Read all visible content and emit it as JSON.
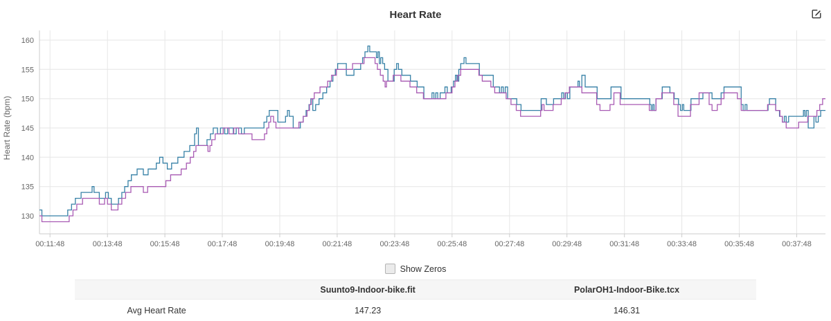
{
  "header": {
    "title": "Heart Rate",
    "edit_icon": "edit-icon"
  },
  "chart_data": {
    "type": "line",
    "subtype": "step-after",
    "title": "Heart Rate",
    "xlabel": "",
    "ylabel": "Heart Rate (bpm)",
    "grid": true,
    "legend_position": "none",
    "ylim": [
      127,
      162
    ],
    "y_ticks": [
      130,
      135,
      140,
      145,
      150,
      155,
      160
    ],
    "x_ticks": [
      "00:11:48",
      "00:13:48",
      "00:15:48",
      "00:17:48",
      "00:19:48",
      "00:21:48",
      "00:23:48",
      "00:25:48",
      "00:27:48",
      "00:29:48",
      "00:31:48",
      "00:33:48",
      "00:35:48",
      "00:37:48"
    ],
    "x_tick_seconds": [
      708,
      828,
      948,
      1068,
      1188,
      1308,
      1428,
      1548,
      1668,
      1788,
      1908,
      2028,
      2148,
      2268
    ],
    "x_range_seconds": [
      686,
      2328
    ],
    "series": [
      {
        "name": "Suunto9-Indoor-bike.fit",
        "color": "#3680a6",
        "points": [
          [
            686,
            131
          ],
          [
            691,
            130
          ],
          [
            745,
            131
          ],
          [
            753,
            132
          ],
          [
            761,
            133
          ],
          [
            773,
            134
          ],
          [
            796,
            135
          ],
          [
            800,
            134
          ],
          [
            811,
            133
          ],
          [
            824,
            134
          ],
          [
            830,
            133
          ],
          [
            836,
            132
          ],
          [
            851,
            133
          ],
          [
            858,
            134
          ],
          [
            864,
            135
          ],
          [
            871,
            136
          ],
          [
            878,
            137
          ],
          [
            890,
            138
          ],
          [
            903,
            137
          ],
          [
            913,
            138
          ],
          [
            930,
            139
          ],
          [
            937,
            140
          ],
          [
            944,
            139
          ],
          [
            953,
            138
          ],
          [
            962,
            139
          ],
          [
            975,
            140
          ],
          [
            988,
            141
          ],
          [
            1000,
            142
          ],
          [
            1010,
            144
          ],
          [
            1014,
            145
          ],
          [
            1018,
            142
          ],
          [
            1036,
            143
          ],
          [
            1043,
            144
          ],
          [
            1049,
            145
          ],
          [
            1058,
            144
          ],
          [
            1064,
            145
          ],
          [
            1073,
            144
          ],
          [
            1079,
            145
          ],
          [
            1091,
            144
          ],
          [
            1097,
            145
          ],
          [
            1108,
            144
          ],
          [
            1114,
            145
          ],
          [
            1155,
            146
          ],
          [
            1161,
            147
          ],
          [
            1166,
            148
          ],
          [
            1184,
            146
          ],
          [
            1200,
            147
          ],
          [
            1204,
            148
          ],
          [
            1208,
            147
          ],
          [
            1216,
            145
          ],
          [
            1231,
            146
          ],
          [
            1237,
            147
          ],
          [
            1243,
            148
          ],
          [
            1249,
            149
          ],
          [
            1253,
            150
          ],
          [
            1257,
            148
          ],
          [
            1263,
            149
          ],
          [
            1270,
            150
          ],
          [
            1278,
            151
          ],
          [
            1286,
            152
          ],
          [
            1293,
            153
          ],
          [
            1299,
            154
          ],
          [
            1304,
            155
          ],
          [
            1309,
            156
          ],
          [
            1327,
            154
          ],
          [
            1343,
            155
          ],
          [
            1357,
            156
          ],
          [
            1361,
            157
          ],
          [
            1366,
            158
          ],
          [
            1372,
            159
          ],
          [
            1376,
            158
          ],
          [
            1390,
            157
          ],
          [
            1393,
            158
          ],
          [
            1396,
            156
          ],
          [
            1399,
            157
          ],
          [
            1403,
            156
          ],
          [
            1407,
            155
          ],
          [
            1414,
            153
          ],
          [
            1427,
            155
          ],
          [
            1432,
            156
          ],
          [
            1436,
            155
          ],
          [
            1443,
            154
          ],
          [
            1461,
            153
          ],
          [
            1475,
            152
          ],
          [
            1489,
            150
          ],
          [
            1506,
            151
          ],
          [
            1510,
            150
          ],
          [
            1514,
            151
          ],
          [
            1518,
            150
          ],
          [
            1523,
            151
          ],
          [
            1533,
            152
          ],
          [
            1538,
            151
          ],
          [
            1546,
            152
          ],
          [
            1551,
            153
          ],
          [
            1555,
            154
          ],
          [
            1558,
            153
          ],
          [
            1562,
            155
          ],
          [
            1566,
            156
          ],
          [
            1573,
            157
          ],
          [
            1577,
            156
          ],
          [
            1605,
            154
          ],
          [
            1634,
            152
          ],
          [
            1647,
            151
          ],
          [
            1651,
            152
          ],
          [
            1655,
            151
          ],
          [
            1659,
            152
          ],
          [
            1664,
            150
          ],
          [
            1683,
            149
          ],
          [
            1692,
            148
          ],
          [
            1734,
            150
          ],
          [
            1745,
            149
          ],
          [
            1760,
            150
          ],
          [
            1777,
            151
          ],
          [
            1781,
            150
          ],
          [
            1785,
            151
          ],
          [
            1789,
            150
          ],
          [
            1794,
            152
          ],
          [
            1811,
            153
          ],
          [
            1814,
            152
          ],
          [
            1819,
            154
          ],
          [
            1826,
            152
          ],
          [
            1851,
            150
          ],
          [
            1880,
            152
          ],
          [
            1901,
            150
          ],
          [
            1961,
            149
          ],
          [
            1964,
            148
          ],
          [
            1967,
            149
          ],
          [
            1970,
            148
          ],
          [
            1974,
            150
          ],
          [
            1987,
            152
          ],
          [
            2003,
            151
          ],
          [
            2012,
            150
          ],
          [
            2021,
            149
          ],
          [
            2025,
            148
          ],
          [
            2029,
            149
          ],
          [
            2032,
            148
          ],
          [
            2047,
            150
          ],
          [
            2072,
            151
          ],
          [
            2091,
            150
          ],
          [
            2110,
            151
          ],
          [
            2116,
            152
          ],
          [
            2152,
            149
          ],
          [
            2156,
            148
          ],
          [
            2160,
            149
          ],
          [
            2164,
            148
          ],
          [
            2208,
            149
          ],
          [
            2211,
            150
          ],
          [
            2224,
            148
          ],
          [
            2232,
            147
          ],
          [
            2238,
            146
          ],
          [
            2242,
            147
          ],
          [
            2246,
            146
          ],
          [
            2251,
            147
          ],
          [
            2282,
            148
          ],
          [
            2285,
            147
          ],
          [
            2288,
            148
          ],
          [
            2292,
            145
          ],
          [
            2304,
            147
          ],
          [
            2308,
            146
          ],
          [
            2313,
            147
          ],
          [
            2318,
            148
          ]
        ]
      },
      {
        "name": "PolarOH1-Indoor-Bike.tcx",
        "color": "#a85ab3",
        "points": [
          [
            686,
            130
          ],
          [
            691,
            129
          ],
          [
            748,
            130
          ],
          [
            756,
            131
          ],
          [
            764,
            132
          ],
          [
            776,
            133
          ],
          [
            811,
            132
          ],
          [
            822,
            133
          ],
          [
            828,
            132
          ],
          [
            836,
            131
          ],
          [
            850,
            132
          ],
          [
            858,
            133
          ],
          [
            866,
            134
          ],
          [
            877,
            135
          ],
          [
            903,
            134
          ],
          [
            912,
            135
          ],
          [
            950,
            136
          ],
          [
            960,
            137
          ],
          [
            982,
            138
          ],
          [
            993,
            139
          ],
          [
            1001,
            140
          ],
          [
            1008,
            141
          ],
          [
            1013,
            142
          ],
          [
            1038,
            141
          ],
          [
            1042,
            142
          ],
          [
            1046,
            143
          ],
          [
            1053,
            144
          ],
          [
            1070,
            145
          ],
          [
            1082,
            144
          ],
          [
            1092,
            145
          ],
          [
            1102,
            144
          ],
          [
            1130,
            143
          ],
          [
            1156,
            144
          ],
          [
            1161,
            145
          ],
          [
            1165,
            146
          ],
          [
            1169,
            147
          ],
          [
            1175,
            146
          ],
          [
            1180,
            145
          ],
          [
            1228,
            146
          ],
          [
            1237,
            147
          ],
          [
            1245,
            148
          ],
          [
            1250,
            149
          ],
          [
            1254,
            150
          ],
          [
            1260,
            151
          ],
          [
            1272,
            152
          ],
          [
            1288,
            153
          ],
          [
            1296,
            154
          ],
          [
            1306,
            155
          ],
          [
            1340,
            156
          ],
          [
            1364,
            157
          ],
          [
            1387,
            156
          ],
          [
            1392,
            155
          ],
          [
            1398,
            154
          ],
          [
            1404,
            153
          ],
          [
            1408,
            152
          ],
          [
            1411,
            153
          ],
          [
            1425,
            154
          ],
          [
            1441,
            153
          ],
          [
            1460,
            152
          ],
          [
            1474,
            151
          ],
          [
            1488,
            150
          ],
          [
            1535,
            151
          ],
          [
            1548,
            152
          ],
          [
            1554,
            153
          ],
          [
            1560,
            154
          ],
          [
            1566,
            155
          ],
          [
            1604,
            154
          ],
          [
            1611,
            153
          ],
          [
            1629,
            152
          ],
          [
            1637,
            151
          ],
          [
            1661,
            150
          ],
          [
            1671,
            149
          ],
          [
            1682,
            148
          ],
          [
            1691,
            147
          ],
          [
            1733,
            148
          ],
          [
            1736,
            149
          ],
          [
            1740,
            148
          ],
          [
            1759,
            149
          ],
          [
            1776,
            150
          ],
          [
            1784,
            151
          ],
          [
            1793,
            152
          ],
          [
            1819,
            151
          ],
          [
            1850,
            149
          ],
          [
            1857,
            148
          ],
          [
            1878,
            149
          ],
          [
            1886,
            151
          ],
          [
            1899,
            149
          ],
          [
            1960,
            148
          ],
          [
            1974,
            150
          ],
          [
            1986,
            151
          ],
          [
            2011,
            149
          ],
          [
            2020,
            147
          ],
          [
            2046,
            149
          ],
          [
            2064,
            151
          ],
          [
            2085,
            149
          ],
          [
            2091,
            148
          ],
          [
            2102,
            149
          ],
          [
            2110,
            150
          ],
          [
            2116,
            151
          ],
          [
            2144,
            150
          ],
          [
            2152,
            148
          ],
          [
            2207,
            149
          ],
          [
            2224,
            148
          ],
          [
            2233,
            147
          ],
          [
            2238,
            146
          ],
          [
            2246,
            145
          ],
          [
            2272,
            146
          ],
          [
            2291,
            147
          ],
          [
            2310,
            148
          ],
          [
            2316,
            149
          ],
          [
            2322,
            150
          ]
        ]
      }
    ]
  },
  "controls": {
    "show_zeros_label": "Show Zeros",
    "show_zeros_checked": false
  },
  "table": {
    "columns": [
      "",
      "Suunto9-Indoor-bike.fit",
      "PolarOH1-Indoor-Bike.tcx"
    ],
    "rows": [
      {
        "label": "Avg Heart Rate",
        "values": [
          "147.23",
          "146.31"
        ]
      }
    ]
  }
}
